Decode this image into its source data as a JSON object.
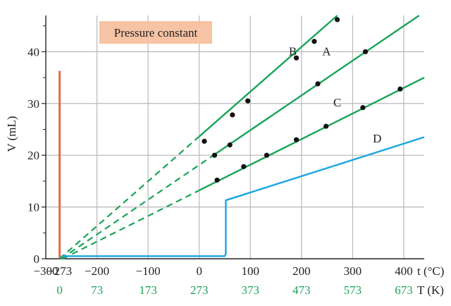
{
  "chart_data": {
    "type": "line",
    "title": "Pressure constant",
    "ylabel": "V (mL)",
    "xlabel_celsius": "t (°C)",
    "xlabel_kelvin": "T (K)",
    "xlim": [
      -300,
      440
    ],
    "ylim": [
      0,
      47
    ],
    "x_ticks_celsius": [
      {
        "value": -300,
        "label": "−300"
      },
      {
        "value": -273,
        "label": "−273"
      },
      {
        "value": -200,
        "label": "−200"
      },
      {
        "value": -100,
        "label": "−100"
      },
      {
        "value": 0,
        "label": "0"
      },
      {
        "value": 100,
        "label": "100"
      },
      {
        "value": 200,
        "label": "200"
      },
      {
        "value": 300,
        "label": "300"
      },
      {
        "value": 400,
        "label": "400"
      }
    ],
    "x_ticks_kelvin": [
      {
        "value": -273,
        "label": "0"
      },
      {
        "value": -200,
        "label": "73"
      },
      {
        "value": -100,
        "label": "173"
      },
      {
        "value": 0,
        "label": "273"
      },
      {
        "value": 100,
        "label": "373"
      },
      {
        "value": 200,
        "label": "473"
      },
      {
        "value": 300,
        "label": "573"
      },
      {
        "value": 400,
        "label": "673"
      }
    ],
    "y_ticks": [
      0,
      10,
      20,
      30,
      40
    ],
    "grid": true,
    "series": [
      {
        "name": "B",
        "color": "#1aa35a",
        "extrapolated_from": [
          -273,
          0
        ],
        "solid_range": [
          0,
          270
        ],
        "line_end": [
          270,
          47
        ],
        "points": [
          [
            10,
            22.7
          ],
          [
            65,
            27.8
          ],
          [
            95,
            30.5
          ],
          [
            190,
            38.8
          ],
          [
            225,
            42
          ],
          [
            270,
            46.2
          ]
        ]
      },
      {
        "name": "A",
        "color": "#1aa35a",
        "extrapolated_from": [
          -270,
          0
        ],
        "solid_range": [
          30,
          430
        ],
        "line_end": [
          430,
          47
        ],
        "points": [
          [
            30,
            20
          ],
          [
            60,
            22
          ],
          [
            232,
            33.8
          ],
          [
            325,
            40
          ]
        ]
      },
      {
        "name": "C",
        "color": "#1aa35a",
        "extrapolated_from": [
          -267,
          0
        ],
        "solid_range": [
          0,
          440
        ],
        "line_end": [
          440,
          35
        ],
        "points": [
          [
            35,
            15.2
          ],
          [
            87,
            17.8
          ],
          [
            132,
            20
          ],
          [
            190,
            23
          ],
          [
            248,
            25.6
          ],
          [
            320,
            29.2
          ],
          [
            393,
            32.8
          ]
        ]
      },
      {
        "name": "D",
        "color": "#1aa5e0",
        "line_points": [
          [
            -270,
            0.5
          ],
          [
            50,
            0.5
          ],
          [
            52,
            1
          ],
          [
            52,
            11.3
          ],
          [
            440,
            23.5
          ]
        ]
      }
    ],
    "vertical_marker": {
      "x": -273,
      "y_top": 36.3,
      "color": "#e8684a"
    }
  }
}
